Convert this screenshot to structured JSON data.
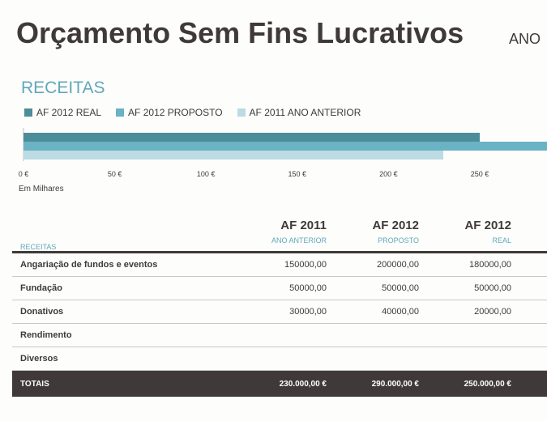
{
  "header": {
    "title": "Orçamento Sem Fins Lucrativos",
    "year_label": "ANO"
  },
  "section_title": "RECEITAS",
  "legend": [
    {
      "label": "AF 2012 REAL",
      "color": "#4c8d9a"
    },
    {
      "label": "AF 2012 PROPOSTO",
      "color": "#6ab3c4"
    },
    {
      "label": "AF 2011 ANO ANTERIOR",
      "color": "#bcdbe3"
    }
  ],
  "chart_data": {
    "type": "bar",
    "orientation": "horizontal",
    "categories": [
      "TOTAIS"
    ],
    "series": [
      {
        "name": "AF 2012 REAL",
        "values": [
          250
        ]
      },
      {
        "name": "AF 2012 PROPOSTO",
        "values": [
          290
        ]
      },
      {
        "name": "AF 2011 ANO ANTERIOR",
        "values": [
          230
        ]
      }
    ],
    "xticks": [
      "0 €",
      "50 €",
      "100 €",
      "150 €",
      "200 €",
      "250 €"
    ],
    "xlim": [
      0,
      300
    ],
    "caption": "Em Milhares"
  },
  "table": {
    "label_header": "RECEITAS",
    "columns": [
      {
        "year": "AF 2011",
        "sub": "ANO ANTERIOR"
      },
      {
        "year": "AF 2012",
        "sub": "PROPOSTO"
      },
      {
        "year": "AF 2012",
        "sub": "REAL"
      }
    ],
    "rows": [
      {
        "name": "Angariação de fundos e eventos",
        "v1": "150000,00",
        "v2": "200000,00",
        "v3": "180000,00"
      },
      {
        "name": "Fundação",
        "v1": "50000,00",
        "v2": "50000,00",
        "v3": "50000,00"
      },
      {
        "name": "Donativos",
        "v1": "30000,00",
        "v2": "40000,00",
        "v3": "20000,00"
      },
      {
        "name": "Rendimento",
        "v1": "",
        "v2": "",
        "v3": ""
      },
      {
        "name": "Diversos",
        "v1": "",
        "v2": "",
        "v3": ""
      }
    ],
    "total": {
      "name": "TOTAIS",
      "v1": "230.000,00 €",
      "v2": "290.000,00 €",
      "v3": "250.000,00 €"
    }
  }
}
